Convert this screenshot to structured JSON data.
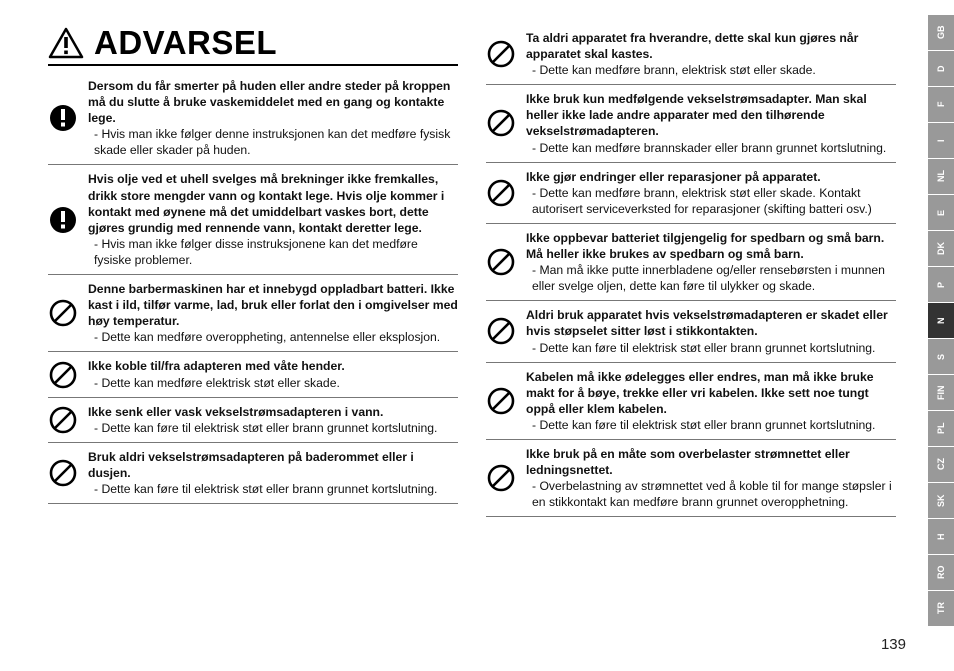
{
  "heading": "ADVARSEL",
  "page_number": "139",
  "icon_stroke": "#000000",
  "icon_fill_solid": "#000000",
  "col1": [
    {
      "icon": "solid",
      "bold": "Dersom du får smerter på huden eller andre steder på kroppen må du slutte å bruke vaskemiddelet med en gang og kontakte lege.",
      "sub": "- Hvis man ikke følger denne instruksjonen kan det medføre fysisk skade eller skader på huden."
    },
    {
      "icon": "solid",
      "bold": "Hvis olje ved et uhell svelges må brekninger ikke fremkalles, drikk store mengder vann og kontakt lege. Hvis olje kommer i kontakt med øynene må det umiddelbart vaskes bort, dette gjøres grundig med rennende vann, kontakt deretter lege.",
      "sub": "- Hvis man ikke følger disse instruksjonene kan det medføre fysiske problemer."
    },
    {
      "icon": "prohibit",
      "bold": "Denne barbermaskinen har et innebygd oppladbart batteri. Ikke kast i ild, tilfør varme, lad, bruk eller forlat den i omgivelser med høy temperatur.",
      "sub": "- Dette kan medføre overoppheting, antennelse eller eksplosjon."
    },
    {
      "icon": "prohibit",
      "bold": "Ikke koble til/fra adapteren med våte hender.",
      "sub": "- Dette kan medføre elektrisk støt eller skade."
    },
    {
      "icon": "prohibit",
      "bold": "Ikke senk eller vask vekselstrømsadapteren i vann.",
      "sub": "- Dette kan føre til elektrisk støt eller brann grunnet kortslutning."
    },
    {
      "icon": "prohibit",
      "bold": "Bruk aldri vekselstrømsadapteren på baderommet eller i dusjen.",
      "sub": "- Dette kan føre til elektrisk støt eller brann grunnet kortslutning."
    }
  ],
  "col2": [
    {
      "icon": "prohibit",
      "bold": "Ta aldri apparatet fra hverandre, dette skal kun gjøres når apparatet skal kastes.",
      "sub": "- Dette kan medføre brann, elektrisk støt eller skade."
    },
    {
      "icon": "prohibit",
      "bold": "Ikke bruk kun medfølgende vekselstrømsadapter. Man skal heller ikke lade andre apparater med den tilhørende vekselstrømadapteren.",
      "sub": "- Dette kan medføre brannskader eller brann grunnet kortslutning."
    },
    {
      "icon": "prohibit",
      "bold": "Ikke gjør endringer eller reparasjoner på apparatet.",
      "sub": "- Dette kan medføre brann, elektrisk støt eller skade. Kontakt autorisert serviceverksted for reparasjoner (skifting batteri osv.)"
    },
    {
      "icon": "prohibit",
      "bold": "Ikke oppbevar batteriet tilgjengelig for spedbarn og små barn. Må heller ikke brukes av spedbarn og små barn.",
      "sub": "- Man må ikke putte innerbladene og/eller rensebørsten i munnen eller svelge oljen, dette kan føre til ulykker og skade."
    },
    {
      "icon": "prohibit",
      "bold": "Aldri bruk apparatet hvis vekselstrømadapteren er skadet eller hvis støpselet sitter løst i stikkontakten.",
      "sub": "- Dette kan føre til elektrisk støt eller brann grunnet kortslutning."
    },
    {
      "icon": "prohibit",
      "bold": "Kabelen må ikke ødelegges eller endres, man må ikke bruke makt for å bøye, trekke eller vri kabelen. Ikke sett noe tungt oppå eller klem kabelen.",
      "sub": "- Dette kan føre til elektrisk støt eller brann grunnet kortslutning."
    },
    {
      "icon": "prohibit",
      "bold": "Ikke bruk på en måte som overbelaster strømnettet eller ledningsnettet.",
      "sub": "- Overbelastning av strømnettet ved å koble til for mange støpsler i en stikkontakt kan medføre brann grunnet overopphetning."
    }
  ],
  "langs": [
    "GB",
    "D",
    "F",
    "I",
    "NL",
    "E",
    "DK",
    "P",
    "N",
    "S",
    "FIN",
    "PL",
    "CZ",
    "SK",
    "H",
    "RO",
    "TR"
  ],
  "active_lang": "N"
}
